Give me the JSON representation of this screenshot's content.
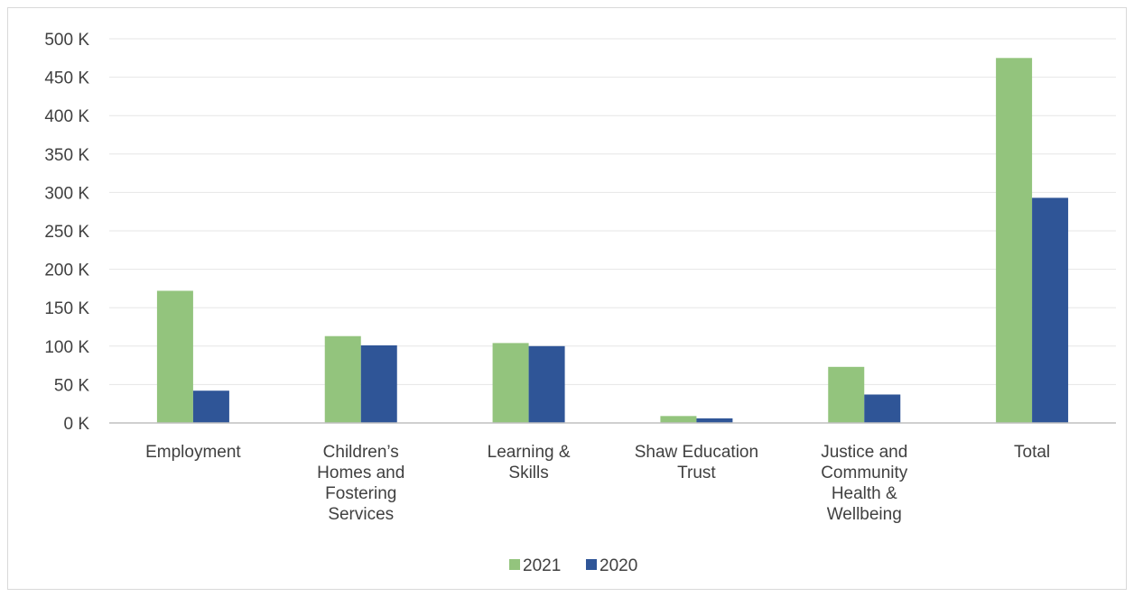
{
  "chart_data": {
    "type": "bar",
    "title": "",
    "xlabel": "",
    "ylabel": "",
    "categories": [
      "Employment",
      "Children’s Homes and Fostering Services",
      "Learning & Skills",
      "Shaw Education Trust",
      "Justice and Community Health & Wellbeing",
      "Total"
    ],
    "category_lines": [
      [
        "Employment"
      ],
      [
        "Children’s",
        "Homes and",
        "Fostering",
        "Services"
      ],
      [
        "Learning &",
        "Skills"
      ],
      [
        "Shaw Education",
        "Trust"
      ],
      [
        "Justice and",
        "Community",
        "Health &",
        "Wellbeing"
      ],
      [
        "Total"
      ]
    ],
    "series": [
      {
        "name": "2021",
        "color": "#93c47d",
        "values": [
          172000,
          113000,
          104000,
          9000,
          73000,
          475000
        ]
      },
      {
        "name": "2020",
        "color": "#2f5597",
        "values": [
          42000,
          101000,
          100000,
          6000,
          37000,
          293000
        ]
      }
    ],
    "ylim": [
      0,
      500000
    ],
    "yticks": [
      0,
      50000,
      100000,
      150000,
      200000,
      250000,
      300000,
      350000,
      400000,
      450000,
      500000
    ],
    "ytick_labels": [
      "0 K",
      "50 K",
      "100 K",
      "150 K",
      "200 K",
      "250 K",
      "300 K",
      "350 K",
      "400 K",
      "450 K",
      "500 K"
    ],
    "grid": true,
    "gridline_color": "#e6e6e6",
    "axis_color": "#bfbfbf",
    "legend": {
      "position": "bottom",
      "entries": [
        "2021",
        "2020"
      ]
    }
  }
}
